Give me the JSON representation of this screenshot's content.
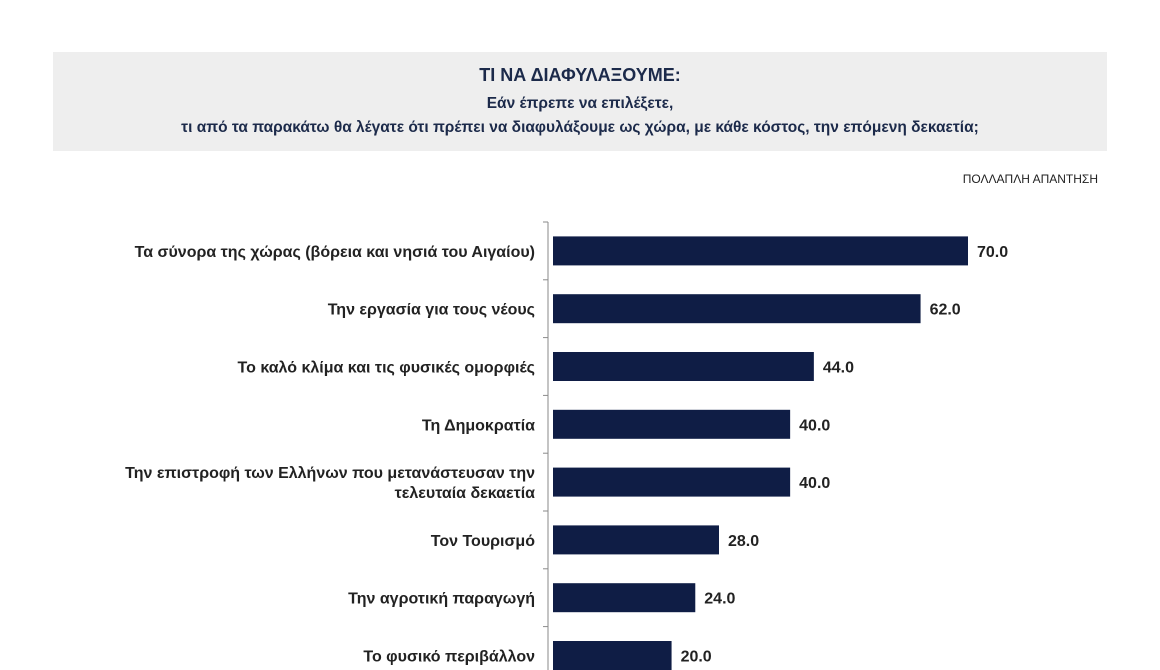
{
  "header": {
    "title": "ΤΙ  ΝΑ ΔΙΑΦΥΛΑΞΟΥΜΕ:",
    "subtitle1": "Εάν έπρεπε να επιλέξετε,",
    "subtitle2": "τι από τα παρακάτω θα λέγατε ότι πρέπει να διαφυλάξουμε ως χώρα, με κάθε κόστος, την επόμενη δεκαετία;"
  },
  "note": "ΠΟΛΛΑΠΛΗ ΑΠΑΝΤΗΣΗ",
  "colors": {
    "bar": "#0f1d45",
    "title_text": "#1c2a4a",
    "title_bg": "#eeeeee"
  },
  "chart_data": {
    "type": "bar",
    "orientation": "horizontal",
    "categories": [
      [
        "Τα σύνορα της χώρας (βόρεια και νησιά του Αιγαίου)"
      ],
      [
        "Την εργασία για τους νέους"
      ],
      [
        "Το καλό κλίμα και τις φυσικές ομορφιές"
      ],
      [
        "Τη Δημοκρατία"
      ],
      [
        "Την επιστροφή των Ελλήνων που μετανάστευσαν την",
        "τελευταία δεκαετία"
      ],
      [
        "Τον Τουρισμό"
      ],
      [
        "Την αγροτική παραγωγή"
      ],
      [
        "Το φυσικό περιβάλλον"
      ]
    ],
    "values": [
      70.0,
      62.0,
      44.0,
      40.0,
      40.0,
      28.0,
      24.0,
      20.0
    ],
    "value_labels": [
      "70.0",
      "62.0",
      "44.0",
      "40.0",
      "40.0",
      "28.0",
      "24.0",
      "20.0"
    ],
    "xlim": [
      0,
      100
    ],
    "grid": false
  }
}
